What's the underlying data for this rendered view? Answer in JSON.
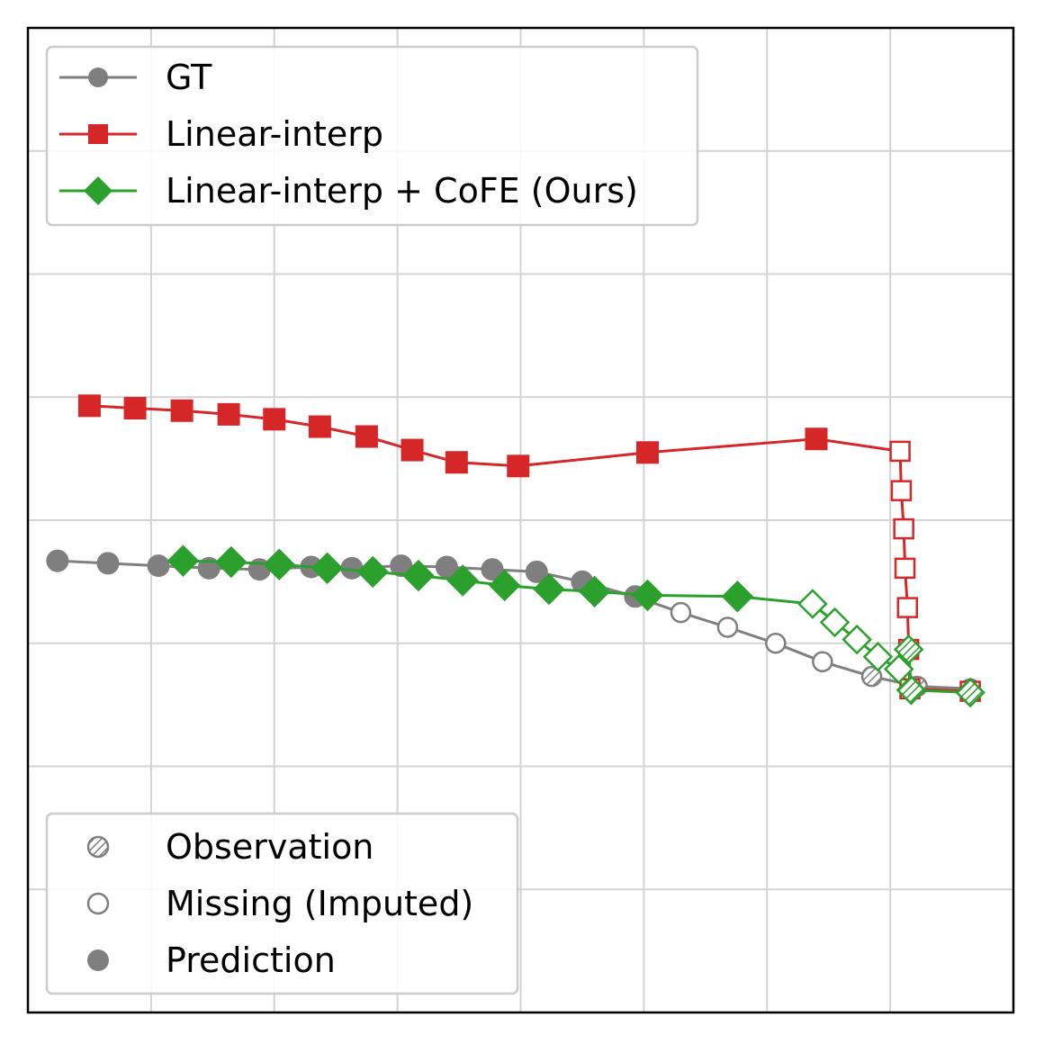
{
  "chart_data": {
    "type": "line",
    "title": "",
    "xlabel": "",
    "ylabel": "",
    "xlim": [
      0,
      8
    ],
    "ylim": [
      0,
      8
    ],
    "grid": true,
    "tick_labels_shown": false,
    "series": [
      {
        "name": "GT",
        "color": "#7f7f7f",
        "marker": "circle",
        "prediction": [
          [
            0.24,
            3.67
          ],
          [
            0.65,
            3.65
          ],
          [
            1.06,
            3.63
          ],
          [
            1.47,
            3.61
          ],
          [
            1.88,
            3.6
          ],
          [
            2.3,
            3.62
          ],
          [
            2.63,
            3.61
          ],
          [
            3.03,
            3.63
          ],
          [
            3.4,
            3.62
          ],
          [
            3.77,
            3.6
          ],
          [
            4.13,
            3.58
          ],
          [
            4.5,
            3.5
          ],
          [
            4.93,
            3.38
          ]
        ],
        "missing": [
          [
            5.3,
            3.25
          ],
          [
            5.68,
            3.13
          ],
          [
            6.07,
            3.0
          ],
          [
            6.45,
            2.85
          ]
        ],
        "observation": [
          [
            6.85,
            2.73
          ],
          [
            7.22,
            2.65
          ],
          [
            7.65,
            2.63
          ]
        ]
      },
      {
        "name": "Linear-interp",
        "color": "#d62728",
        "marker": "square",
        "prediction": [
          [
            0.5,
            4.93
          ],
          [
            0.87,
            4.91
          ],
          [
            1.25,
            4.89
          ],
          [
            1.63,
            4.86
          ],
          [
            2.0,
            4.82
          ],
          [
            2.37,
            4.76
          ],
          [
            2.75,
            4.68
          ],
          [
            3.12,
            4.57
          ],
          [
            3.48,
            4.47
          ],
          [
            3.98,
            4.44
          ],
          [
            5.03,
            4.55
          ],
          [
            6.4,
            4.66
          ]
        ],
        "missing": [
          [
            7.08,
            4.56
          ],
          [
            7.09,
            4.24
          ],
          [
            7.11,
            3.93
          ],
          [
            7.12,
            3.61
          ],
          [
            7.14,
            3.29
          ]
        ],
        "observation": [
          [
            7.15,
            2.95
          ],
          [
            7.16,
            2.63
          ],
          [
            7.65,
            2.61
          ]
        ]
      },
      {
        "name": "Linear-interp + CoFE (Ours)",
        "color": "#2ca02c",
        "marker": "diamond",
        "prediction": [
          [
            1.26,
            3.67
          ],
          [
            1.65,
            3.66
          ],
          [
            2.04,
            3.64
          ],
          [
            2.43,
            3.61
          ],
          [
            2.8,
            3.58
          ],
          [
            3.17,
            3.55
          ],
          [
            3.53,
            3.51
          ],
          [
            3.87,
            3.47
          ],
          [
            4.23,
            3.44
          ],
          [
            4.6,
            3.42
          ],
          [
            5.03,
            3.39
          ],
          [
            5.76,
            3.38
          ]
        ],
        "missing": [
          [
            6.37,
            3.32
          ],
          [
            6.55,
            3.17
          ],
          [
            6.73,
            3.03
          ],
          [
            6.9,
            2.89
          ],
          [
            7.07,
            2.79
          ]
        ],
        "observation": [
          [
            7.15,
            2.95
          ],
          [
            7.17,
            2.62
          ],
          [
            7.65,
            2.6
          ]
        ]
      }
    ],
    "legend": {
      "series_placement": "top-left",
      "marker_types_placement": "bottom-left",
      "marker_types": [
        {
          "label": "Observation",
          "style": "hatched"
        },
        {
          "label": "Missing (Imputed)",
          "style": "hollow"
        },
        {
          "label": "Prediction",
          "style": "filled"
        }
      ]
    }
  }
}
